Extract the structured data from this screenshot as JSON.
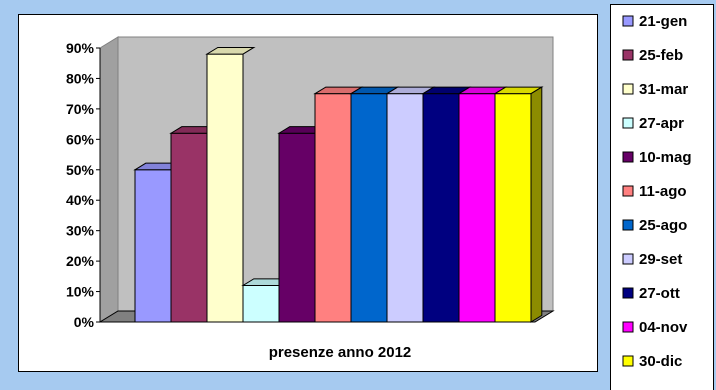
{
  "chart_data": {
    "type": "bar",
    "title": "",
    "xlabel": "presenze anno 2012",
    "ylabel": "",
    "ylim": [
      0,
      90
    ],
    "yticks": [
      "0%",
      "10%",
      "20%",
      "30%",
      "40%",
      "50%",
      "60%",
      "70%",
      "80%",
      "90%"
    ],
    "y_unit": "%",
    "grid": false,
    "three_d": true,
    "legend_position": "right",
    "series": [
      {
        "name": "21-gen",
        "value": 50,
        "color": "#9999ff"
      },
      {
        "name": "25-feb",
        "value": 62,
        "color": "#993366"
      },
      {
        "name": "31-mar",
        "value": 88,
        "color": "#ffffcc"
      },
      {
        "name": "27-apr",
        "value": 12,
        "color": "#ccffff"
      },
      {
        "name": "10-mag",
        "value": 62,
        "color": "#660066"
      },
      {
        "name": "11-ago",
        "value": 75,
        "color": "#ff8080"
      },
      {
        "name": "25-ago",
        "value": 75,
        "color": "#0066cc"
      },
      {
        "name": "29-set",
        "value": 75,
        "color": "#ccccff"
      },
      {
        "name": "27-ott",
        "value": 75,
        "color": "#000080"
      },
      {
        "name": "04-nov",
        "value": 75,
        "color": "#ff00ff"
      },
      {
        "name": "30-dic",
        "value": 75,
        "color": "#ffff00"
      }
    ]
  },
  "colors": {
    "background": "#a6caf0",
    "plot_wall": "#c0c0c0",
    "floor": "#808080"
  }
}
